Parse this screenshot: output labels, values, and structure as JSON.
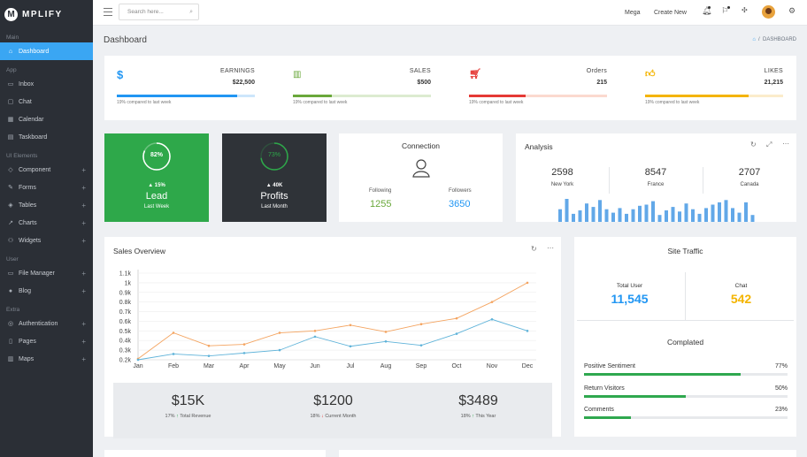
{
  "brand": {
    "logo": "M",
    "name": "MPLIFY"
  },
  "sidebar": {
    "sections": [
      "Main",
      "App",
      "UI Elements",
      "User",
      "Extra"
    ],
    "items": [
      {
        "label": "Dashboard",
        "icon": "home-icon"
      },
      {
        "label": "Inbox",
        "icon": "inbox-icon"
      },
      {
        "label": "Chat",
        "icon": "chat-icon"
      },
      {
        "label": "Calendar",
        "icon": "calendar-icon"
      },
      {
        "label": "Taskboard",
        "icon": "taskboard-icon"
      },
      {
        "label": "Component",
        "icon": "diamond-icon"
      },
      {
        "label": "Forms",
        "icon": "pencil-icon"
      },
      {
        "label": "Tables",
        "icon": "tag-icon"
      },
      {
        "label": "Charts",
        "icon": "chart-icon"
      },
      {
        "label": "Widgets",
        "icon": "widgets-icon"
      },
      {
        "label": "File Manager",
        "icon": "folder-icon"
      },
      {
        "label": "Blog",
        "icon": "globe-icon"
      },
      {
        "label": "Authentication",
        "icon": "lock-icon"
      },
      {
        "label": "Pages",
        "icon": "pages-icon"
      },
      {
        "label": "Maps",
        "icon": "map-icon"
      }
    ]
  },
  "topbar": {
    "search_placeholder": "Search here...",
    "mega": "Mega",
    "create_new": "Create New"
  },
  "page": {
    "title": "Dashboard",
    "breadcrumb": "DASHBOARD"
  },
  "stats": [
    {
      "label": "EARNINGS",
      "value": "$22,500",
      "note": "19% compared to last week",
      "progress": 0.87,
      "color": "#2196f3",
      "track": "#cde6fb",
      "icon": "dollar-icon"
    },
    {
      "label": "SALES",
      "value": "$500",
      "note": "19% compared to last week",
      "progress": 0.28,
      "color": "#6aa83b",
      "track": "#dcebd0",
      "icon": "bar-chart-icon"
    },
    {
      "label": "Orders",
      "value": "215",
      "note": "19% compared to last week",
      "progress": 0.41,
      "color": "#e53935",
      "track": "#fbd9cf",
      "icon": "cart-icon"
    },
    {
      "label": "LIKES",
      "value": "21,215",
      "note": "19% compared to last week",
      "progress": 0.75,
      "color": "#f4b400",
      "track": "#fbeccb",
      "icon": "thumbs-up-icon"
    }
  ],
  "lead": {
    "percent": "82%",
    "ratio": 0.82,
    "delta": "▲ 15%",
    "title": "Lead",
    "sub": "Last Week",
    "color": "#2ea84a"
  },
  "profits": {
    "percent": "73%",
    "ratio": 0.73,
    "delta": "▲ 40K",
    "title": "Profits",
    "sub": "Last Month",
    "color": "#2f3338"
  },
  "connection": {
    "title": "Connection",
    "following_label": "Following",
    "following": "1255",
    "followers_label": "Followers",
    "followers": "3650"
  },
  "analysis": {
    "title": "Analysis",
    "cols": [
      {
        "value": "2598",
        "label": "New York"
      },
      {
        "value": "8547",
        "label": "France"
      },
      {
        "value": "2707",
        "label": "Canada"
      }
    ],
    "bars": [
      0.55,
      1.0,
      0.35,
      0.5,
      0.8,
      0.65,
      0.95,
      0.55,
      0.4,
      0.6,
      0.35,
      0.55,
      0.7,
      0.75,
      0.9,
      0.3,
      0.5,
      0.65,
      0.45,
      0.8,
      0.55,
      0.35,
      0.6,
      0.75,
      0.85,
      0.95,
      0.6,
      0.4,
      0.85,
      0.3
    ]
  },
  "sales_overview": {
    "title": "Sales Overview"
  },
  "summary": [
    {
      "value": "$15K",
      "pct": "17%",
      "label": "Total Revenue"
    },
    {
      "value": "$1200",
      "pct": "18%",
      "label": "Current Month"
    },
    {
      "value": "$3489",
      "pct": "18%",
      "label": "This Year"
    }
  ],
  "site_traffic": {
    "title": "Site Traffic",
    "total_user_label": "Total User",
    "total_user": "11,545",
    "chat_label": "Chat",
    "chat": "542",
    "completed_title": "Complated",
    "progress": [
      {
        "label": "Positive Sentiment",
        "value": "77%",
        "ratio": 0.77
      },
      {
        "label": "Return Visitors",
        "value": "50%",
        "ratio": 0.5
      },
      {
        "label": "Comments",
        "value": "23%",
        "ratio": 0.23
      }
    ]
  },
  "chart_data": {
    "type": "line",
    "title": "Sales Overview",
    "categories": [
      "Jan",
      "Feb",
      "Mar",
      "Apr",
      "May",
      "Jun",
      "Jul",
      "Aug",
      "Sep",
      "Oct",
      "Nov",
      "Dec"
    ],
    "yticks": [
      "0.2k",
      "0.3k",
      "0.4k",
      "0.5k",
      "0.6k",
      "0.7k",
      "0.8k",
      "0.9k",
      "1k",
      "1.1k"
    ],
    "ylim": [
      200,
      1100
    ],
    "grid": true,
    "series": [
      {
        "color": "#f4a460",
        "values": [
          210,
          480,
          345,
          360,
          480,
          500,
          560,
          490,
          570,
          630,
          800,
          1000
        ]
      },
      {
        "color": "#5fb3d9",
        "values": [
          200,
          260,
          240,
          270,
          300,
          440,
          340,
          390,
          350,
          470,
          620,
          500
        ]
      }
    ]
  }
}
